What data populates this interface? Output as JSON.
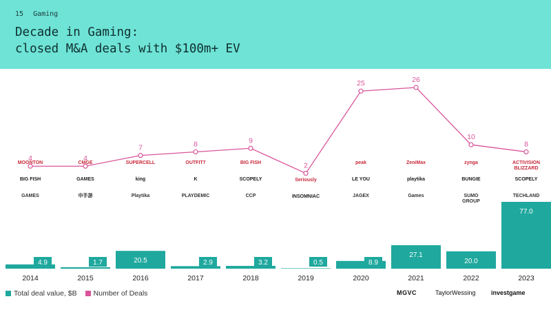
{
  "header": {
    "page_number": "15",
    "section": "Gaming",
    "title_line1": "Decade in Gaming:",
    "title_line2": "closed M&A deals with $100m+ EV"
  },
  "colors": {
    "header_bg": "#6ee3d6",
    "bar": "#1fa89e",
    "line": "#d9559a"
  },
  "chart_data": {
    "type": "bar+line",
    "categories": [
      "2014",
      "2015",
      "2016",
      "2017",
      "2018",
      "2019",
      "2020",
      "2021",
      "2022",
      "2023"
    ],
    "series": [
      {
        "name": "Total deal value, $B",
        "type": "bar",
        "values": [
          4.9,
          1.7,
          20.5,
          2.9,
          3.2,
          0.5,
          8.9,
          27.1,
          20.0,
          77.0
        ],
        "labels": [
          "4.9",
          "1.7",
          "20.5",
          "2.9",
          "3.2",
          "0.5",
          "8.9",
          "27.1",
          "20.0",
          "77.0"
        ]
      },
      {
        "name": "Number of Deals",
        "type": "line",
        "values": [
          4,
          4,
          7,
          8,
          9,
          2,
          25,
          26,
          10,
          8
        ]
      }
    ],
    "legend_position": "bottom-left"
  },
  "legend": {
    "bar_label": "Total deal value, $B",
    "line_label": "Number of Deals"
  },
  "logos": [
    [
      "MOONTON",
      "BIG FISH",
      "GAMES"
    ],
    [
      "CMGE",
      "GAMES",
      "中手游"
    ],
    [
      "SUPERCELL",
      "king",
      "Playtika"
    ],
    [
      "OUTFIT7",
      "K",
      "PLAYDEMIC"
    ],
    [
      "BIG FISH",
      "SCOPELY",
      "CCP"
    ],
    [
      "Seriously",
      "INSOMNIAC"
    ],
    [
      "peak",
      "LE YOU",
      "JAGEX"
    ],
    [
      "ZeniMax",
      "playtika",
      "Games"
    ],
    [
      "zynga",
      "BUNGIE",
      "SUMO GROUP"
    ],
    [
      "ACTIVISION BLIZZARD",
      "SCOPELY",
      "TECHLAND"
    ]
  ],
  "sources": {
    "s1": "MGVC",
    "s2": "TaylorWessing",
    "s3": "investgame"
  }
}
